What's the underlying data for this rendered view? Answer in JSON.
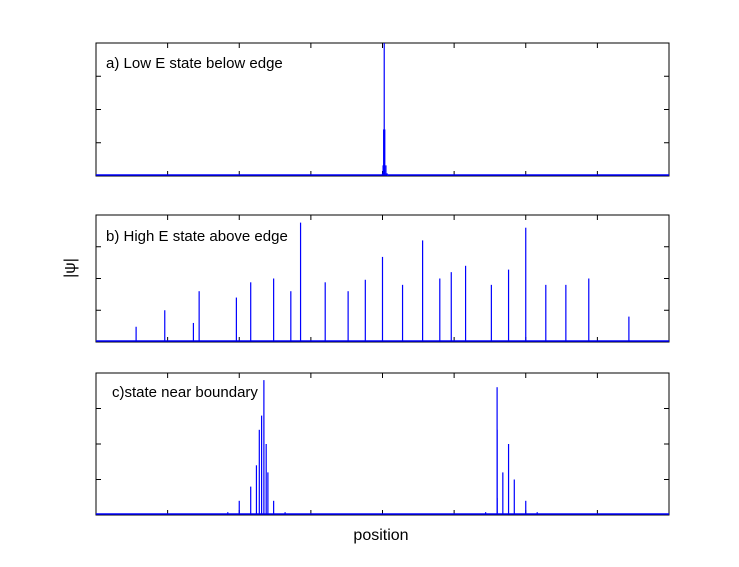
{
  "chart_data": [
    {
      "type": "line",
      "panel": "a",
      "annotation": "a) Low E state below edge",
      "xlabel": "",
      "ylabel": "",
      "xlim": [
        0,
        1
      ],
      "ylim": [
        0,
        1
      ],
      "series": [
        {
          "color": "#0000ff",
          "x": [
            0.5,
            0.501,
            0.502,
            0.503,
            0.504,
            0.506,
            0.508,
            0.509
          ],
          "values": [
            0.02,
            0.08,
            0.35,
            1.0,
            0.35,
            0.08,
            0.02,
            0.0
          ]
        }
      ]
    },
    {
      "type": "line",
      "panel": "b",
      "annotation": "b) High E state above edge",
      "xlabel": "",
      "ylabel": "|ψ|",
      "xlim": [
        0,
        1
      ],
      "ylim": [
        0,
        1
      ],
      "series": [
        {
          "color": "#0000ff",
          "x": [
            0.07,
            0.12,
            0.17,
            0.18,
            0.245,
            0.27,
            0.31,
            0.34,
            0.357,
            0.4,
            0.44,
            0.47,
            0.5,
            0.535,
            0.57,
            0.6,
            0.62,
            0.645,
            0.69,
            0.72,
            0.75,
            0.785,
            0.82,
            0.86,
            0.93
          ],
          "values": [
            0.12,
            0.25,
            0.15,
            0.4,
            0.35,
            0.47,
            0.5,
            0.4,
            0.94,
            0.47,
            0.4,
            0.49,
            0.67,
            0.45,
            0.8,
            0.5,
            0.55,
            0.6,
            0.45,
            0.57,
            0.9,
            0.45,
            0.45,
            0.5,
            0.2
          ]
        }
      ]
    },
    {
      "type": "line",
      "panel": "c",
      "annotation": "c)state near boundary",
      "xlabel": "position",
      "ylabel": "",
      "xlim": [
        0,
        1
      ],
      "ylim": [
        0,
        1
      ],
      "series": [
        {
          "color": "#0000ff",
          "x": [
            0.23,
            0.25,
            0.27,
            0.28,
            0.285,
            0.289,
            0.293,
            0.297,
            0.3,
            0.31,
            0.33,
            0.68,
            0.7,
            0.71,
            0.7,
            0.7,
            0.72,
            0.73,
            0.75,
            0.77
          ],
          "values": [
            0.02,
            0.1,
            0.2,
            0.35,
            0.6,
            0.7,
            0.95,
            0.5,
            0.3,
            0.1,
            0.02,
            0.02,
            0.12,
            0.3,
            0.6,
            0.9,
            0.5,
            0.25,
            0.1,
            0.02
          ]
        }
      ]
    }
  ]
}
